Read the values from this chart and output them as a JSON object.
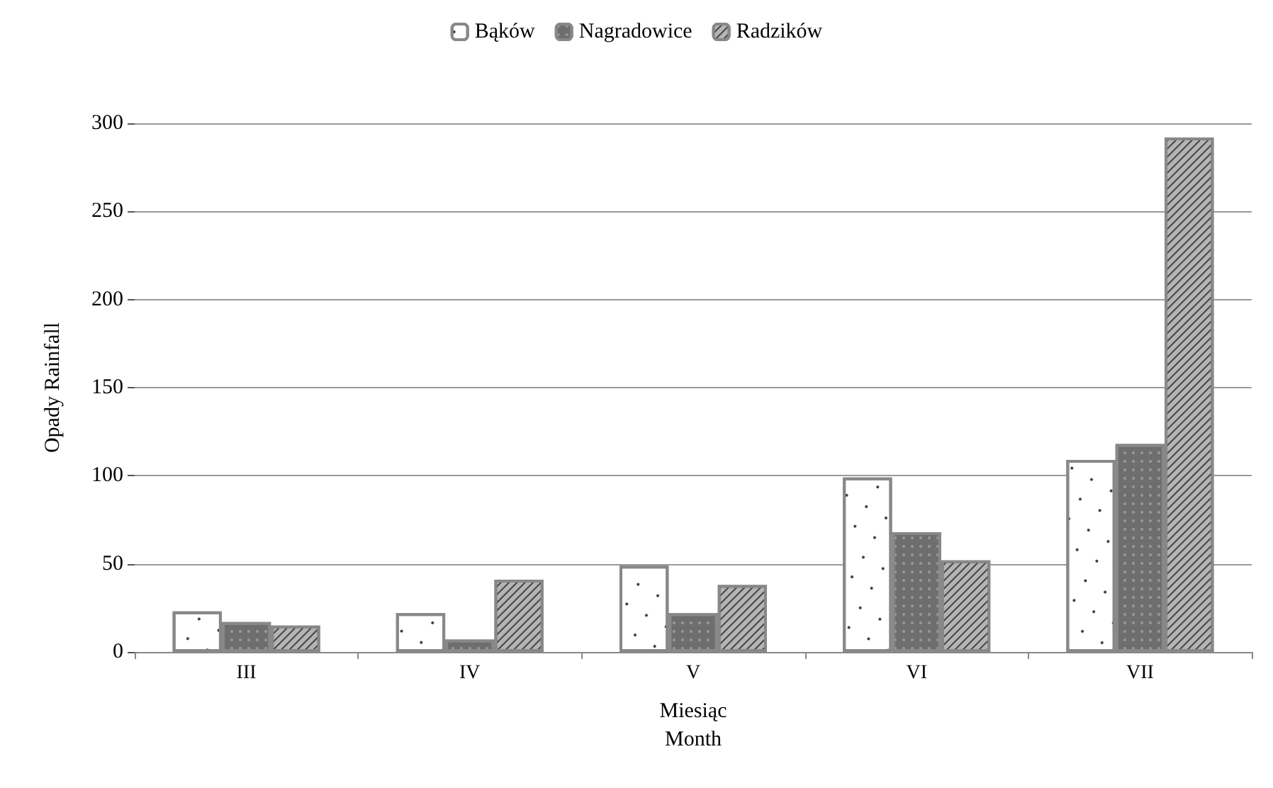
{
  "chart_data": {
    "type": "bar",
    "xlabel": "Miesiąc\nMonth",
    "ylabel": "Opady Rainfall",
    "categories": [
      "III",
      "IV",
      "V",
      "VI",
      "VII"
    ],
    "series": [
      {
        "name": "Bąków",
        "color": "#ffffff",
        "values": [
          23,
          22,
          49,
          99,
          109
        ]
      },
      {
        "name": "Nagradowice",
        "color": "#6e6e6e",
        "values": [
          17,
          7,
          22,
          68,
          118
        ]
      },
      {
        "name": "Radzików",
        "color": "#b4b4b4",
        "values": [
          15,
          41,
          38,
          52,
          292
        ]
      }
    ],
    "ylim": [
      0,
      300
    ],
    "yticks": [
      0,
      50,
      100,
      150,
      200,
      250,
      300
    ],
    "grid": "y",
    "legend": "top"
  }
}
